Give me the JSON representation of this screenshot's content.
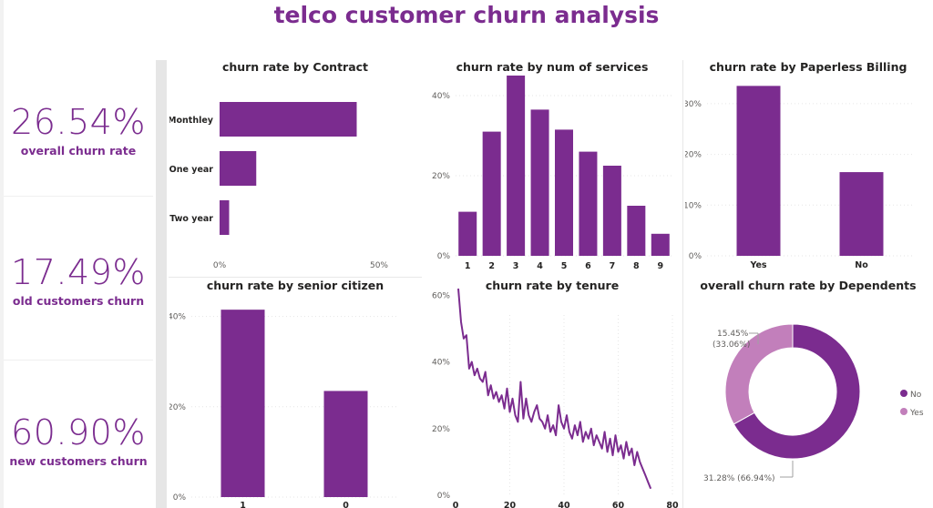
{
  "title": "telco customer churn analysis",
  "kpis": [
    {
      "value": "26.54%",
      "label": "overall churn rate"
    },
    {
      "value": "17.49%",
      "label": "old customers churn"
    },
    {
      "value": "60.90%",
      "label": "new customers churn"
    }
  ],
  "colors": {
    "primary": "#7b2c8f",
    "secondary": "#c27fbb"
  },
  "chart_data": [
    {
      "type": "bar",
      "orientation": "horizontal",
      "title": "churn rate by Contract",
      "categories": [
        "Monthley",
        "One year",
        "Two year"
      ],
      "values": [
        43,
        11.5,
        3
      ],
      "xlim": [
        0,
        50
      ],
      "ticks": [
        "0%",
        "50%"
      ]
    },
    {
      "type": "bar",
      "title": "churn rate by num of services",
      "categories": [
        "1",
        "2",
        "3",
        "4",
        "5",
        "6",
        "7",
        "8",
        "9"
      ],
      "values": [
        11,
        31,
        45,
        36.5,
        31.5,
        26,
        22.5,
        12.5,
        5.5
      ],
      "ylim": [
        0,
        50
      ],
      "ticks": [
        "0%",
        "20%",
        "40%"
      ]
    },
    {
      "type": "bar",
      "title": "churn rate by Paperless Billing",
      "categories": [
        "Yes",
        "No"
      ],
      "values": [
        33.5,
        16.5
      ],
      "ylim": [
        0,
        35
      ],
      "ticks": [
        "0%",
        "10%",
        "20%",
        "30%"
      ]
    },
    {
      "type": "bar",
      "title": "churn rate by senior citizen",
      "categories": [
        "1",
        "0"
      ],
      "values": [
        41.5,
        23.5
      ],
      "ylim": [
        0,
        50
      ],
      "ticks": [
        "0%",
        "20%",
        "40%"
      ]
    },
    {
      "type": "line",
      "title": "churn rate by tenure",
      "x": [
        1,
        2,
        3,
        4,
        5,
        6,
        7,
        8,
        9,
        10,
        11,
        12,
        13,
        14,
        15,
        16,
        17,
        18,
        19,
        20,
        21,
        22,
        23,
        24,
        25,
        26,
        27,
        28,
        29,
        30,
        31,
        32,
        33,
        34,
        35,
        36,
        37,
        38,
        39,
        40,
        41,
        42,
        43,
        44,
        45,
        46,
        47,
        48,
        49,
        50,
        51,
        52,
        53,
        54,
        55,
        56,
        57,
        58,
        59,
        60,
        61,
        62,
        63,
        64,
        65,
        66,
        67,
        68,
        69,
        70,
        71,
        72
      ],
      "y": [
        62,
        52,
        47,
        48,
        38,
        40,
        36,
        38,
        35,
        34,
        37,
        30,
        33,
        29,
        31,
        28,
        30,
        26,
        32,
        25,
        29,
        24,
        22,
        34,
        23,
        29,
        24,
        22,
        25,
        27,
        23,
        22,
        20,
        24,
        19,
        21,
        18,
        27,
        22,
        20,
        24,
        19,
        17,
        21,
        18,
        22,
        16,
        19,
        17,
        20,
        15,
        18,
        16,
        14,
        19,
        13,
        17,
        12,
        18,
        13,
        15,
        11,
        16,
        12,
        14,
        9,
        13,
        10,
        8,
        6,
        4,
        2
      ],
      "xlim": [
        0,
        80
      ],
      "ylim": [
        0,
        65
      ],
      "xticks": [
        "0",
        "20",
        "40",
        "60",
        "80"
      ],
      "yticks": [
        "0%",
        "20%",
        "40%",
        "60%"
      ]
    },
    {
      "type": "pie",
      "donut": true,
      "title": "overall churn rate by Dependents",
      "slices": [
        {
          "name": "No",
          "value": 66.94,
          "label": "31.28% (66.94%)"
        },
        {
          "name": "Yes",
          "value": 33.06,
          "label": "15.45%\n(33.06%)"
        }
      ],
      "legend": [
        "No",
        "Yes"
      ],
      "legend_position": "right"
    }
  ]
}
